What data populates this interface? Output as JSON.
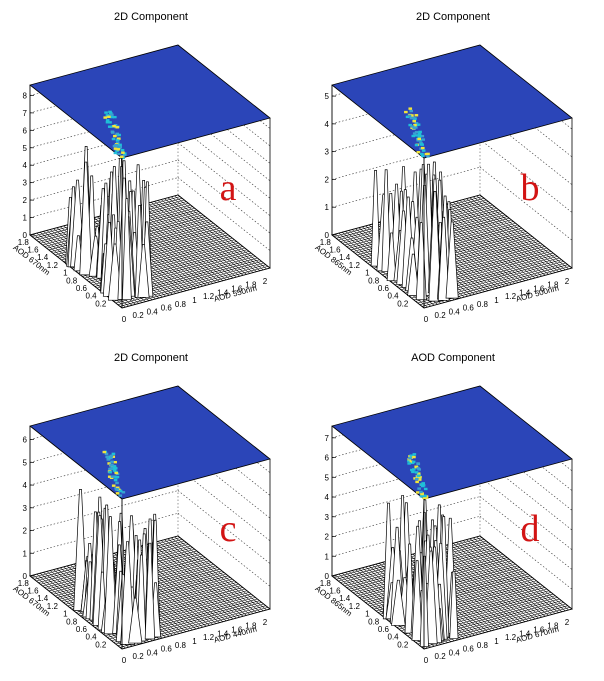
{
  "chart_data": [
    {
      "type": "surface-lego",
      "title": "2D Component",
      "panel_letter": "a",
      "xlabel": "AOD 550nm",
      "ylabel": "AOD 670nm",
      "xticks": [
        "0",
        "0.2",
        "0.4",
        "0.6",
        "0.8",
        "1",
        "1.2",
        "1.4",
        "1.6",
        "1.8",
        "2"
      ],
      "yticks": [
        "0.2",
        "0.4",
        "0.6",
        "0.8",
        "1",
        "1.2",
        "1.4",
        "1.6",
        "1.8"
      ],
      "zticks": [
        "0",
        "1",
        "2",
        "3",
        "4",
        "5",
        "6",
        "7",
        "8"
      ],
      "zlim": [
        0,
        8.6
      ],
      "top_color_map": "blue-to-yellow"
    },
    {
      "type": "surface-lego",
      "title": "2D Component",
      "panel_letter": "b",
      "xlabel": "AOD 500nm",
      "ylabel": "AOD 865nm",
      "xticks": [
        "0",
        "0.2",
        "0.4",
        "0.6",
        "0.8",
        "1",
        "1.2",
        "1.4",
        "1.6",
        "1.8",
        "2"
      ],
      "yticks": [
        "0.2",
        "0.4",
        "0.6",
        "0.8",
        "1",
        "1.2",
        "1.4",
        "1.6",
        "1.8"
      ],
      "zticks": [
        "0",
        "1",
        "2",
        "3",
        "4",
        "5"
      ],
      "zlim": [
        0,
        5.4
      ],
      "top_color_map": "blue-to-yellow"
    },
    {
      "type": "surface-lego",
      "title": "2D Component",
      "panel_letter": "c",
      "xlabel": "AOD 440nm",
      "ylabel": "AOD 670nm",
      "xticks": [
        "0",
        "0.2",
        "0.4",
        "0.6",
        "0.8",
        "1",
        "1.2",
        "1.4",
        "1.6",
        "1.8",
        "2"
      ],
      "yticks": [
        "0.2",
        "0.4",
        "0.6",
        "0.8",
        "1",
        "1.2",
        "1.4",
        "1.6",
        "1.8"
      ],
      "zticks": [
        "0",
        "1",
        "2",
        "3",
        "4",
        "5",
        "6"
      ],
      "zlim": [
        0,
        6.6
      ],
      "top_color_map": "blue-to-yellow"
    },
    {
      "type": "surface-lego",
      "title": "AOD Component",
      "panel_letter": "d",
      "xlabel": "AOD 670nm",
      "ylabel": "AOD 865nm",
      "xticks": [
        "0",
        "0.2",
        "0.4",
        "0.6",
        "0.8",
        "1",
        "1.2",
        "1.4",
        "1.6",
        "1.8",
        "2"
      ],
      "yticks": [
        "0.2",
        "0.4",
        "0.6",
        "0.8",
        "1",
        "1.2",
        "1.4",
        "1.6",
        "1.8"
      ],
      "zticks": [
        "0",
        "1",
        "2",
        "3",
        "4",
        "5",
        "6",
        "7"
      ],
      "zlim": [
        0,
        7.6
      ],
      "top_color_map": "blue-to-yellow"
    }
  ],
  "colors": {
    "top_plane": "#2b45b8",
    "hot_spot_low": "#1fbfd8",
    "hot_spot_high": "#f2e53a",
    "letter": "#d21414",
    "mesh": "#000000"
  }
}
